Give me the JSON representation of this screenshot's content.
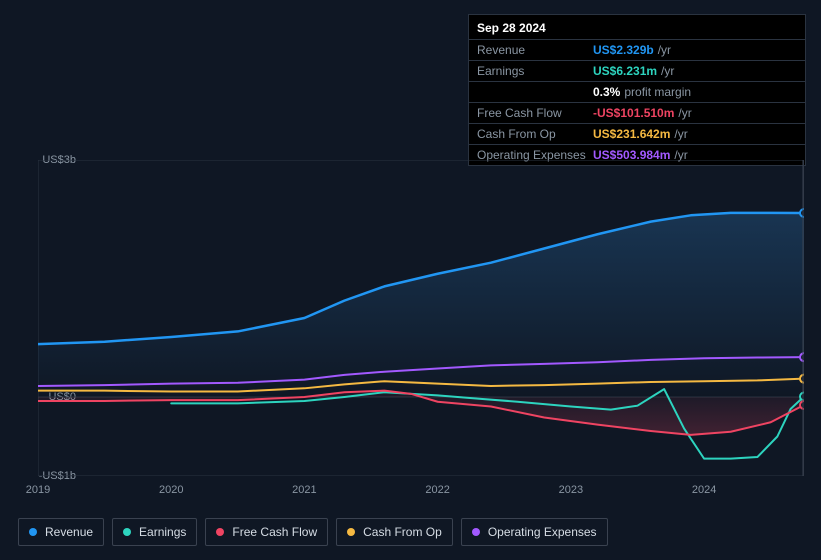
{
  "background_color": "#0f1724",
  "tooltip": {
    "date": "Sep 28 2024",
    "rows": [
      {
        "label": "Revenue",
        "value": "US$2.329b",
        "unit": "/yr",
        "color": "#2196f3"
      },
      {
        "label": "Earnings",
        "value": "US$6.231m",
        "unit": "/yr",
        "color": "#2dd4bf"
      },
      {
        "label": "",
        "value": "0.3%",
        "unit": "profit margin",
        "color": "#ffffff"
      },
      {
        "label": "Free Cash Flow",
        "value": "-US$101.510m",
        "unit": "/yr",
        "color": "#ef4462"
      },
      {
        "label": "Cash From Op",
        "value": "US$231.642m",
        "unit": "/yr",
        "color": "#f5b942"
      },
      {
        "label": "Operating Expenses",
        "value": "US$503.984m",
        "unit": "/yr",
        "color": "#a259ff"
      }
    ]
  },
  "chart": {
    "type": "line",
    "plot_bg": "#0f1724",
    "grid_color": "#2a3340",
    "glow_gradient_top": "#1a3a5a",
    "x_axis": {
      "min": 2019,
      "max": 2024.75,
      "ticks": [
        2019,
        2020,
        2021,
        2022,
        2023,
        2024
      ],
      "labels": [
        "2019",
        "2020",
        "2021",
        "2022",
        "2023",
        "2024"
      ],
      "label_color": "#8a96a3",
      "label_fontsize": 11
    },
    "y_axis": {
      "min": -1000,
      "max": 3000,
      "ticks": [
        -1000,
        0,
        3000
      ],
      "labels": [
        "-US$1b",
        "US$0",
        "US$3b"
      ],
      "label_color": "#8a96a3",
      "label_fontsize": 11
    },
    "series": [
      {
        "name": "Revenue",
        "color": "#2196f3",
        "line_width": 2.5,
        "end_marker": true,
        "points": [
          [
            2019.0,
            670
          ],
          [
            2019.5,
            700
          ],
          [
            2020.0,
            760
          ],
          [
            2020.5,
            830
          ],
          [
            2021.0,
            1000
          ],
          [
            2021.3,
            1220
          ],
          [
            2021.6,
            1400
          ],
          [
            2022.0,
            1560
          ],
          [
            2022.4,
            1700
          ],
          [
            2022.8,
            1880
          ],
          [
            2023.2,
            2060
          ],
          [
            2023.6,
            2220
          ],
          [
            2023.9,
            2300
          ],
          [
            2024.2,
            2330
          ],
          [
            2024.5,
            2330
          ],
          [
            2024.75,
            2329
          ]
        ]
      },
      {
        "name": "Earnings",
        "color": "#2dd4bf",
        "line_width": 2,
        "end_marker": true,
        "points": [
          [
            2020.0,
            -80
          ],
          [
            2020.5,
            -80
          ],
          [
            2021.0,
            -50
          ],
          [
            2021.3,
            0
          ],
          [
            2021.6,
            60
          ],
          [
            2022.0,
            20
          ],
          [
            2022.3,
            -20
          ],
          [
            2022.6,
            -60
          ],
          [
            2023.0,
            -120
          ],
          [
            2023.3,
            -160
          ],
          [
            2023.5,
            -110
          ],
          [
            2023.7,
            100
          ],
          [
            2023.85,
            -400
          ],
          [
            2024.0,
            -780
          ],
          [
            2024.2,
            -780
          ],
          [
            2024.4,
            -760
          ],
          [
            2024.55,
            -500
          ],
          [
            2024.65,
            -150
          ],
          [
            2024.75,
            6
          ]
        ]
      },
      {
        "name": "Free Cash Flow",
        "color": "#ef4462",
        "line_width": 2,
        "end_marker": true,
        "points": [
          [
            2019.0,
            -50
          ],
          [
            2019.5,
            -50
          ],
          [
            2020.0,
            -40
          ],
          [
            2020.5,
            -40
          ],
          [
            2021.0,
            0
          ],
          [
            2021.3,
            60
          ],
          [
            2021.6,
            80
          ],
          [
            2021.8,
            40
          ],
          [
            2022.0,
            -60
          ],
          [
            2022.4,
            -120
          ],
          [
            2022.8,
            -260
          ],
          [
            2023.2,
            -350
          ],
          [
            2023.6,
            -430
          ],
          [
            2023.9,
            -480
          ],
          [
            2024.2,
            -440
          ],
          [
            2024.5,
            -320
          ],
          [
            2024.75,
            -102
          ]
        ]
      },
      {
        "name": "Cash From Op",
        "color": "#f5b942",
        "line_width": 2,
        "end_marker": true,
        "points": [
          [
            2019.0,
            80
          ],
          [
            2019.5,
            80
          ],
          [
            2020.0,
            70
          ],
          [
            2020.5,
            70
          ],
          [
            2021.0,
            110
          ],
          [
            2021.3,
            160
          ],
          [
            2021.6,
            200
          ],
          [
            2022.0,
            170
          ],
          [
            2022.4,
            140
          ],
          [
            2022.8,
            150
          ],
          [
            2023.2,
            170
          ],
          [
            2023.6,
            190
          ],
          [
            2024.0,
            200
          ],
          [
            2024.4,
            210
          ],
          [
            2024.75,
            232
          ]
        ]
      },
      {
        "name": "Operating Expenses",
        "color": "#a259ff",
        "line_width": 2,
        "end_marker": true,
        "points": [
          [
            2019.0,
            140
          ],
          [
            2019.5,
            150
          ],
          [
            2020.0,
            170
          ],
          [
            2020.5,
            180
          ],
          [
            2021.0,
            220
          ],
          [
            2021.3,
            280
          ],
          [
            2021.6,
            320
          ],
          [
            2022.0,
            360
          ],
          [
            2022.4,
            400
          ],
          [
            2022.8,
            420
          ],
          [
            2023.2,
            440
          ],
          [
            2023.6,
            470
          ],
          [
            2024.0,
            490
          ],
          [
            2024.4,
            500
          ],
          [
            2024.75,
            504
          ]
        ]
      }
    ],
    "legend": [
      {
        "label": "Revenue",
        "swatch": "#2196f3"
      },
      {
        "label": "Earnings",
        "swatch": "#2dd4bf"
      },
      {
        "label": "Free Cash Flow",
        "swatch": "#ef4462"
      },
      {
        "label": "Cash From Op",
        "swatch": "#f5b942"
      },
      {
        "label": "Operating Expenses",
        "swatch": "#a259ff"
      }
    ]
  }
}
